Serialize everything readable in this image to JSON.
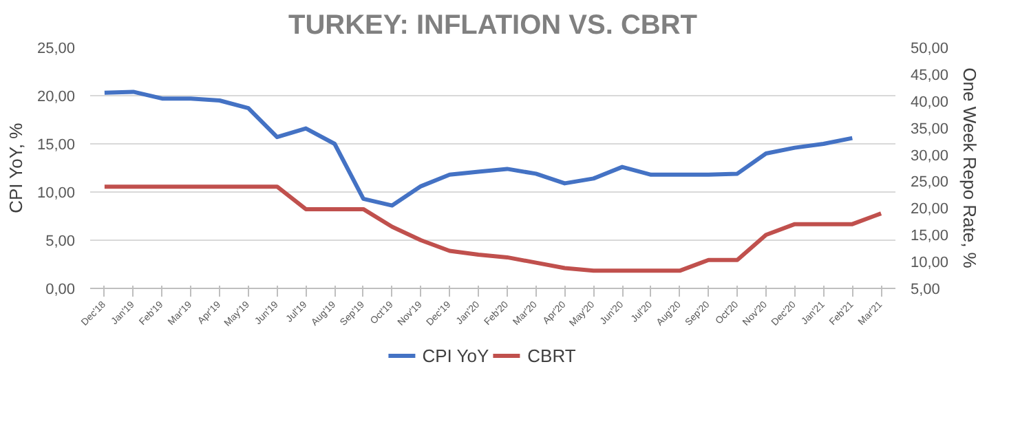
{
  "chart_data": {
    "type": "line",
    "title": "TURKEY: INFLATION VS. CBRT",
    "ylabel": "CPI YoY, %",
    "y2label": "One Week Repo Rate, %",
    "categories": [
      "Dec'18",
      "Jan'19",
      "Feb'19",
      "Mar'19",
      "Apr'19",
      "May'19",
      "Jun'19",
      "Jul'19",
      "Aug'19",
      "Sep'19",
      "Oct'19",
      "Nov'19",
      "Dec'19",
      "Jan'20",
      "Feb'20",
      "Mar'20",
      "Apr'20",
      "May'20",
      "Jun'20",
      "Jul'20",
      "Aug'20",
      "Sep'20",
      "Oct'20",
      "Nov'20",
      "Dec'20",
      "Jan'21",
      "Feb'21",
      "Mar'21"
    ],
    "series": [
      {
        "name": "CPI YoY",
        "color": "#4472c4",
        "values": [
          20.3,
          20.4,
          19.7,
          19.7,
          19.5,
          18.7,
          15.7,
          16.6,
          15.0,
          9.3,
          8.6,
          10.6,
          11.8,
          12.1,
          12.4,
          11.9,
          10.9,
          11.4,
          12.6,
          11.8,
          11.8,
          11.8,
          11.9,
          14.0,
          14.6,
          15.0,
          15.6,
          null
        ]
      },
      {
        "name": "CBRT",
        "color": "#c0504d",
        "axis": "y2",
        "values": [
          24.0,
          24.0,
          24.0,
          24.0,
          24.0,
          24.0,
          24.0,
          19.8,
          19.8,
          19.8,
          16.5,
          14.0,
          12.0,
          11.3,
          10.8,
          9.8,
          8.8,
          8.3,
          8.3,
          8.3,
          8.3,
          10.3,
          10.3,
          15.0,
          17.0,
          17.0,
          17.0,
          19.0
        ]
      }
    ],
    "ylim": [
      0,
      25
    ],
    "yticks": [
      {
        "value": 0,
        "label": "0,00"
      },
      {
        "value": 5,
        "label": "5,00"
      },
      {
        "value": 10,
        "label": "10,00"
      },
      {
        "value": 15,
        "label": "15,00"
      },
      {
        "value": 20,
        "label": "20,00"
      },
      {
        "value": 25,
        "label": "25,00"
      }
    ],
    "y2lim": [
      5,
      50
    ],
    "y2ticks": [
      {
        "value": 5,
        "label": "5,00"
      },
      {
        "value": 10,
        "label": "10,00"
      },
      {
        "value": 15,
        "label": "15,00"
      },
      {
        "value": 20,
        "label": "20,00"
      },
      {
        "value": 25,
        "label": "25,00"
      },
      {
        "value": 30,
        "label": "30,00"
      },
      {
        "value": 35,
        "label": "35,00"
      },
      {
        "value": 40,
        "label": "40,00"
      },
      {
        "value": 45,
        "label": "45,00"
      },
      {
        "value": 50,
        "label": "50,00"
      }
    ],
    "grid": "y",
    "legend": "bottom",
    "marker": "none",
    "line_style": "solid"
  }
}
